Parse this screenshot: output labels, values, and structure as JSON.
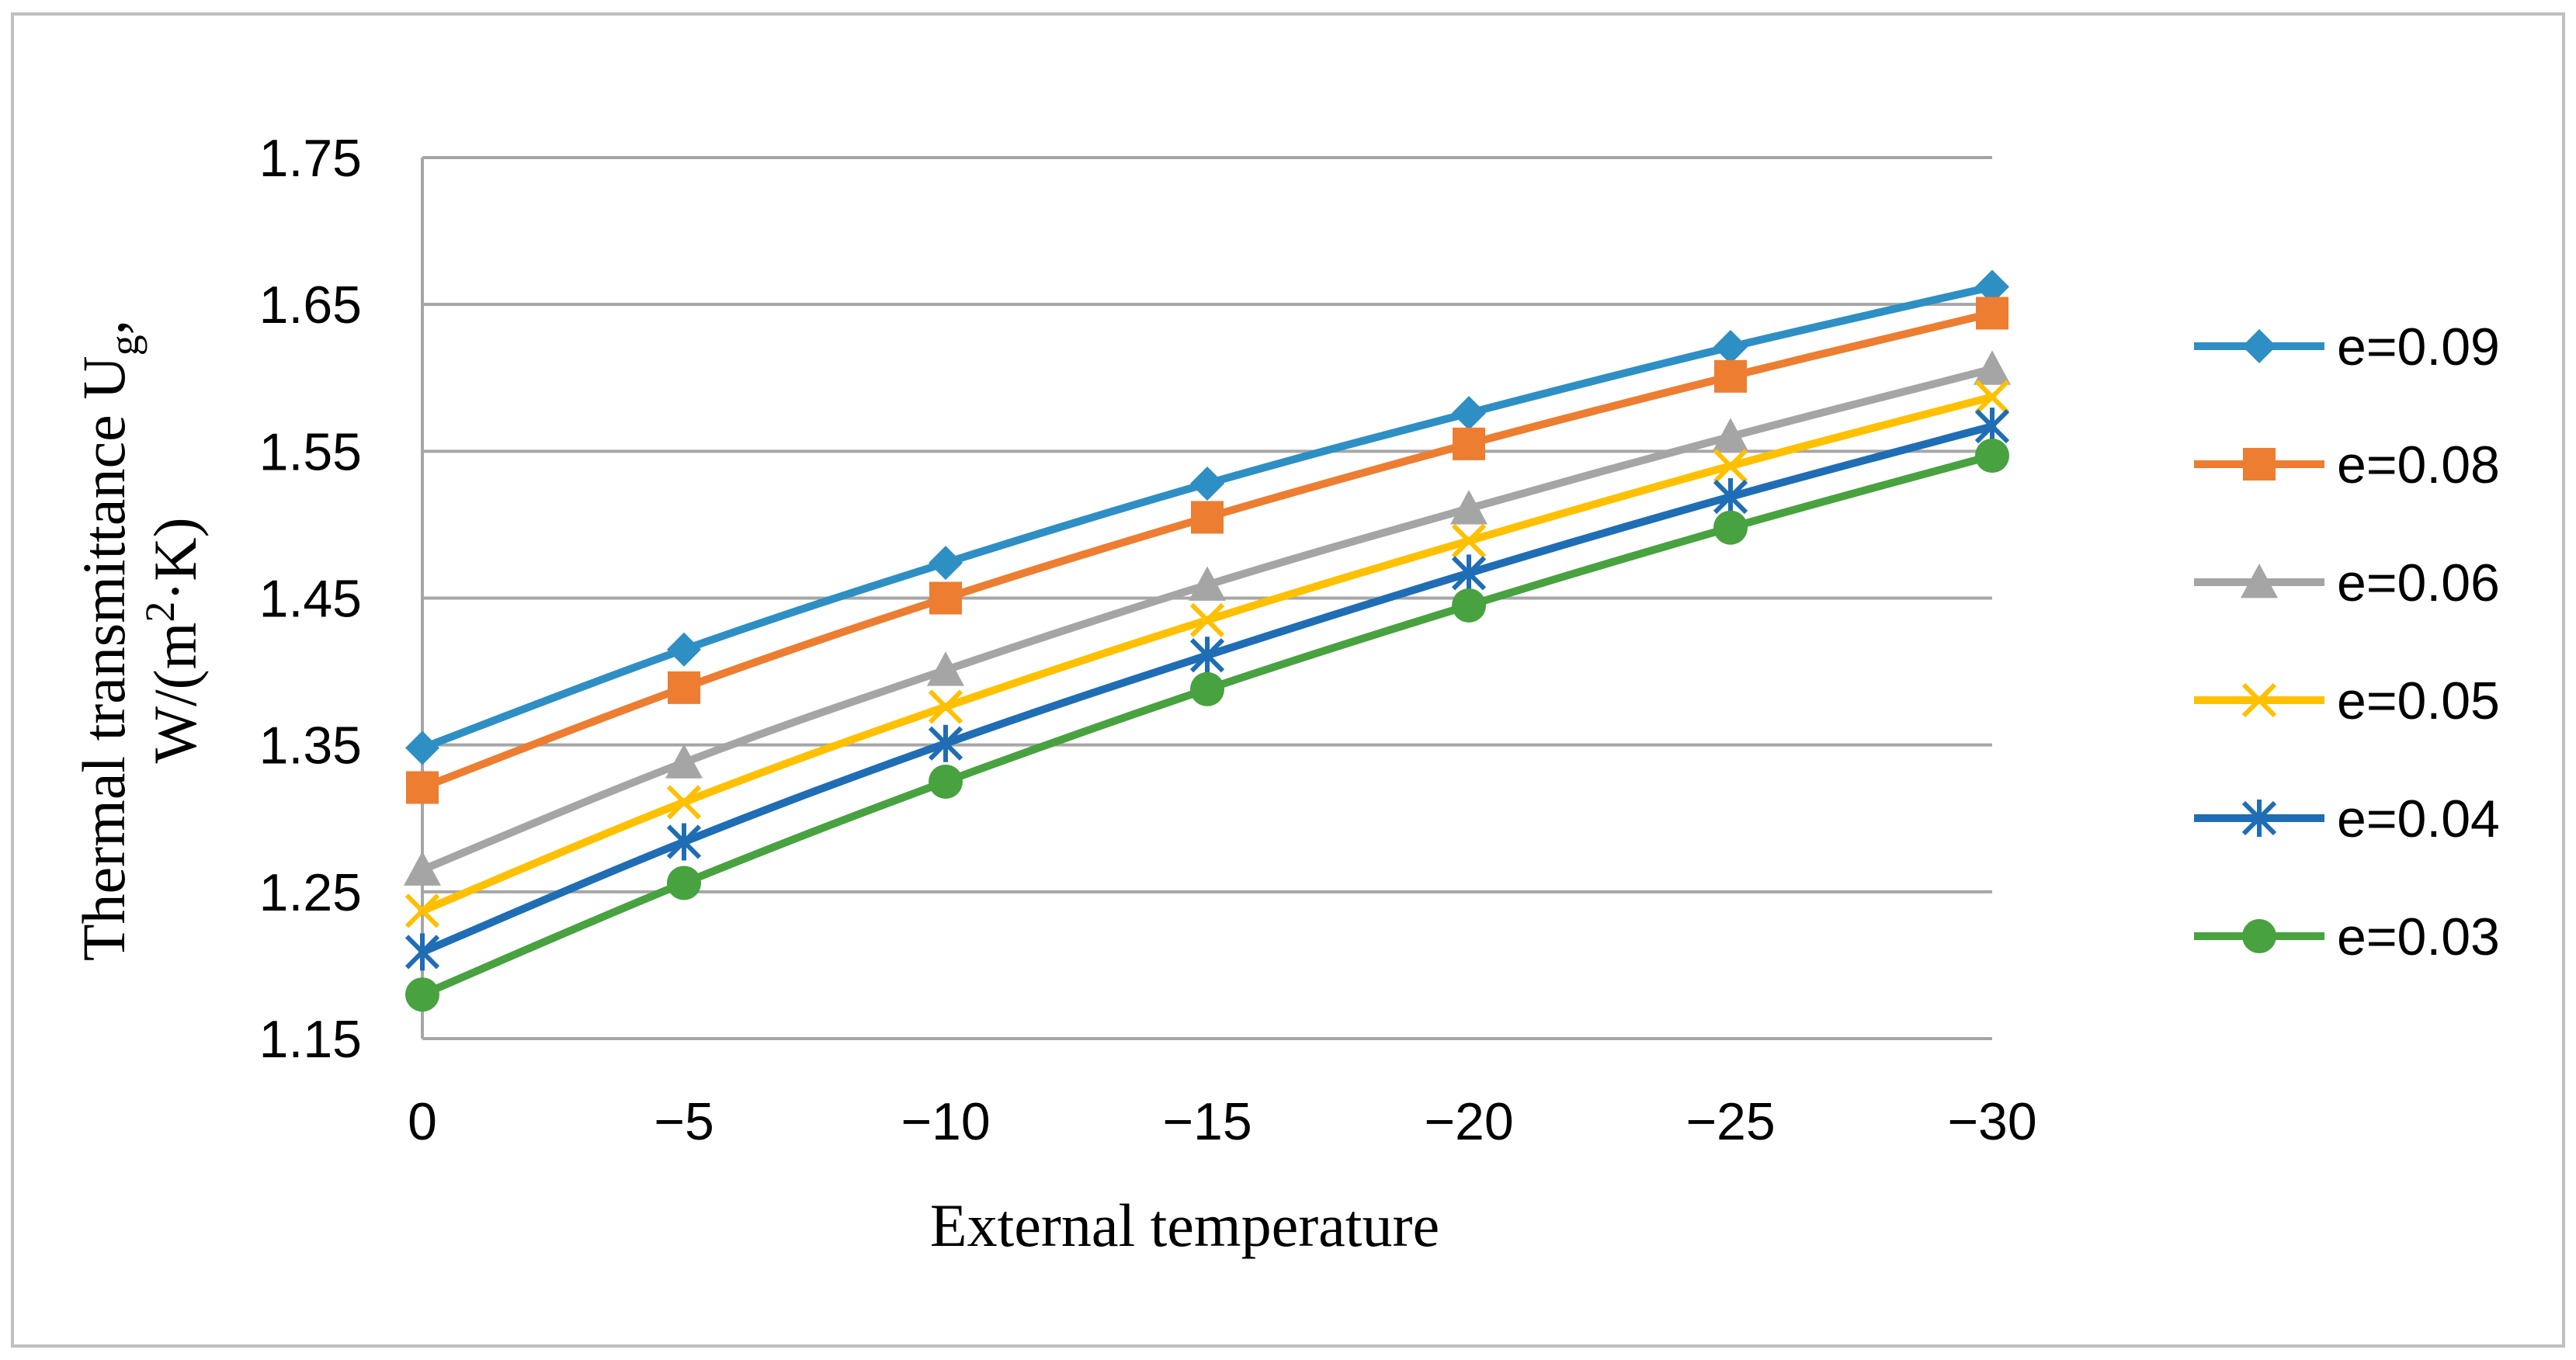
{
  "chart_data": {
    "type": "line",
    "title": "",
    "xlabel": "External temperature",
    "ylabel_line1": "Thermal transmittance U",
    "ylabel_sub": "g",
    "ylabel_comma": ",",
    "ylabel_line2_prefix": "W/(m",
    "ylabel_sup": "2",
    "ylabel_line2_suffix": "·K)",
    "categories": [
      "0",
      "−5",
      "−10",
      "−15",
      "−20",
      "−25",
      "−30"
    ],
    "ylim": [
      1.15,
      1.75
    ],
    "yticks": [
      "1.15",
      "1.25",
      "1.35",
      "1.45",
      "1.55",
      "1.65",
      "1.75"
    ],
    "grid": true,
    "legend_position": "right",
    "series": [
      {
        "name": "e=0.09",
        "color": "#2e8fc4",
        "marker": "diamond",
        "values": [
          1.348,
          1.415,
          1.474,
          1.528,
          1.576,
          1.621,
          1.662
        ]
      },
      {
        "name": "e=0.08",
        "color": "#ed7d31",
        "marker": "square",
        "values": [
          1.321,
          1.389,
          1.45,
          1.505,
          1.555,
          1.601,
          1.644
        ]
      },
      {
        "name": "e=0.06",
        "color": "#a5a5a5",
        "marker": "triangle",
        "values": [
          1.265,
          1.338,
          1.401,
          1.459,
          1.511,
          1.56,
          1.606
        ]
      },
      {
        "name": "e=0.05",
        "color": "#ffc000",
        "marker": "x",
        "values": [
          1.237,
          1.311,
          1.376,
          1.435,
          1.489,
          1.54,
          1.587
        ]
      },
      {
        "name": "e=0.04",
        "color": "#1f6db5",
        "marker": "star",
        "values": [
          1.209,
          1.284,
          1.351,
          1.411,
          1.467,
          1.519,
          1.567
        ]
      },
      {
        "name": "e=0.03",
        "color": "#47a23f",
        "marker": "circle",
        "values": [
          1.18,
          1.256,
          1.325,
          1.388,
          1.445,
          1.498,
          1.547
        ]
      }
    ]
  }
}
